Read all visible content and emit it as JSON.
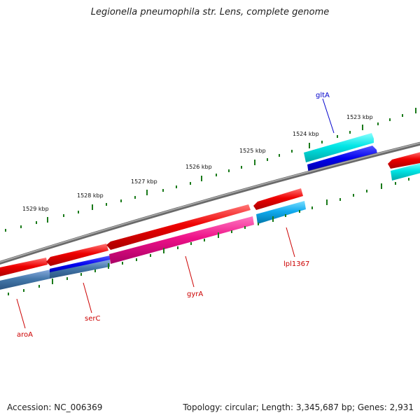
{
  "title": "Legionella pneumophila str. Lens, complete genome",
  "footer": {
    "accession": "Accession: NC_006369",
    "summary": "Topology: circular; Length: 3,345,687 bp; Genes: 2,931"
  },
  "scale_labels": [
    "1523 kbp",
    "1524 kbp",
    "1525 kbp",
    "1526 kbp",
    "1527 kbp",
    "1528 kbp",
    "1529 kbp"
  ],
  "genes": [
    {
      "name": "gltA",
      "color": "#0000cc"
    },
    {
      "name": "lpl1367",
      "color": "#cc0000"
    },
    {
      "name": "gyrA",
      "color": "#cc0000"
    },
    {
      "name": "serC",
      "color": "#cc0000"
    },
    {
      "name": "aroA",
      "color": "#cc0000"
    }
  ],
  "colors": {
    "backbone": "#808080",
    "forward_cds": "#ee0000",
    "reverse_cds": "#00e5e5",
    "blast_blue": "#0000ee",
    "blast_pink": "#ee1188",
    "blast_steel": "#4477aa",
    "blast_sky": "#11aaee",
    "tick": "#1a7a1a"
  }
}
